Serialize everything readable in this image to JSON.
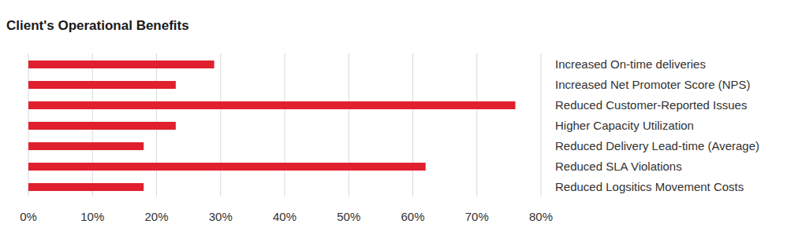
{
  "chart_data": {
    "type": "bar",
    "title": "Client's Operational Benefits",
    "orientation": "horizontal",
    "categories": [
      "Increased On-time deliveries",
      "Increased Net Promoter Score (NPS)",
      "Reduced Customer-Reported Issues",
      "Higher Capacity Utilization",
      "Reduced Delivery Lead-time (Average)",
      "Reduced SLA Violations",
      "Reduced Logsitics Movement Costs"
    ],
    "values": [
      29,
      23,
      76,
      23,
      18,
      62,
      18
    ],
    "color": "#e0202e",
    "xlim": [
      0,
      80
    ],
    "xticks": [
      {
        "value": 0,
        "label": "0%"
      },
      {
        "value": 10,
        "label": "10%"
      },
      {
        "value": 20,
        "label": "20%"
      },
      {
        "value": 30,
        "label": "30%"
      },
      {
        "value": 40,
        "label": "40%"
      },
      {
        "value": 50,
        "label": "50%"
      },
      {
        "value": 60,
        "label": "60%"
      },
      {
        "value": 70,
        "label": "70%"
      },
      {
        "value": 80,
        "label": "80%"
      }
    ],
    "grid": true
  }
}
